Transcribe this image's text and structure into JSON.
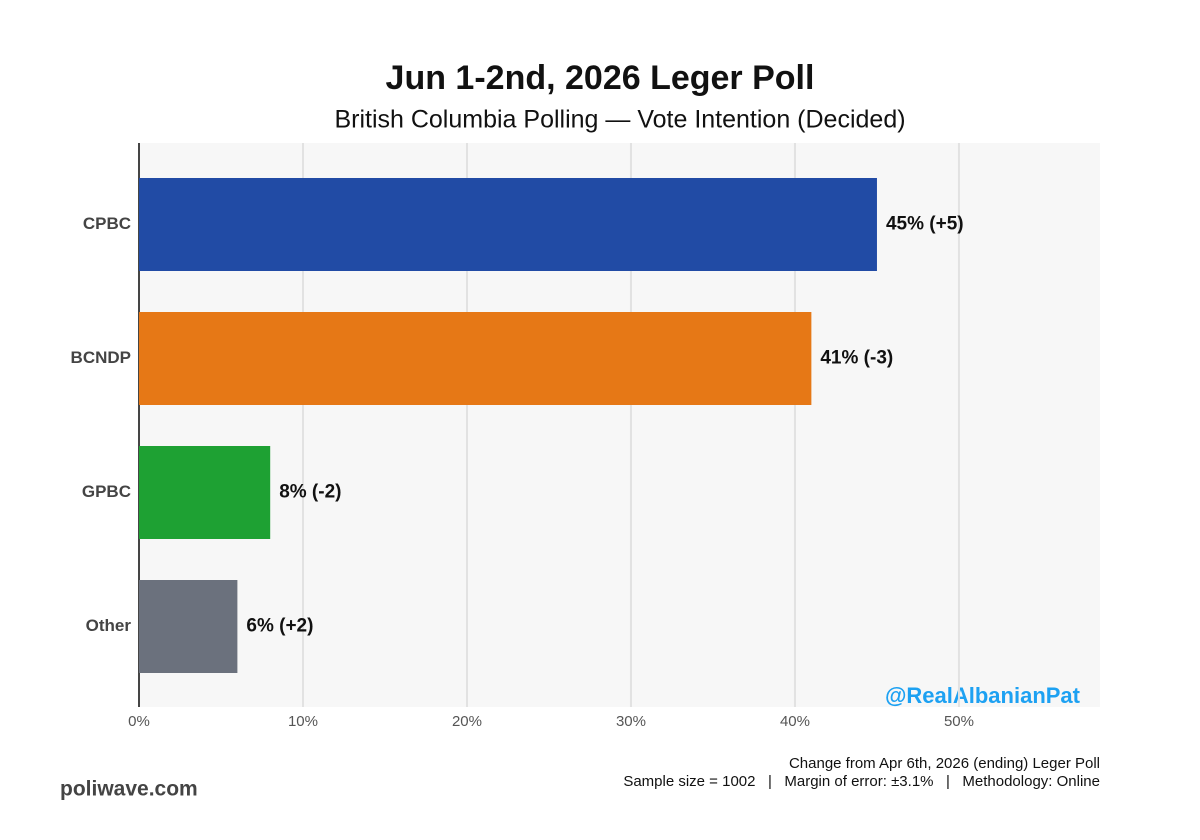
{
  "chart_data": {
    "type": "bar",
    "orientation": "horizontal",
    "title": "Jun 1-2nd, 2026 Leger Poll",
    "subtitle": "British Columbia Polling — Vote Intention (Decided)",
    "categories": [
      "CPBC",
      "BCNDP",
      "GPBC",
      "Other"
    ],
    "values": [
      45,
      41,
      8,
      6
    ],
    "value_labels": [
      "45% (+5)",
      "41% (-3)",
      "8% (-2)",
      "6% (+2)"
    ],
    "colors": [
      "#214ba5",
      "#e67816",
      "#1ea133",
      "#6b717d"
    ],
    "xlim": [
      0,
      58.6
    ],
    "xticks": [
      {
        "value": 0,
        "label": "0%"
      },
      {
        "value": 10,
        "label": "10%"
      },
      {
        "value": 20,
        "label": "20%"
      },
      {
        "value": 30,
        "label": "30%"
      },
      {
        "value": 40,
        "label": "40%"
      },
      {
        "value": 50,
        "label": "50%"
      }
    ],
    "grid": true,
    "watermark": "@RealAlbanianPat",
    "footnotes": [
      "Change from Apr 6th, 2026 (ending) Leger Poll",
      "Sample size = 1002   |   Margin of error: ±3.1%   |   Methodology: Online"
    ],
    "source": "poliwave.com"
  }
}
